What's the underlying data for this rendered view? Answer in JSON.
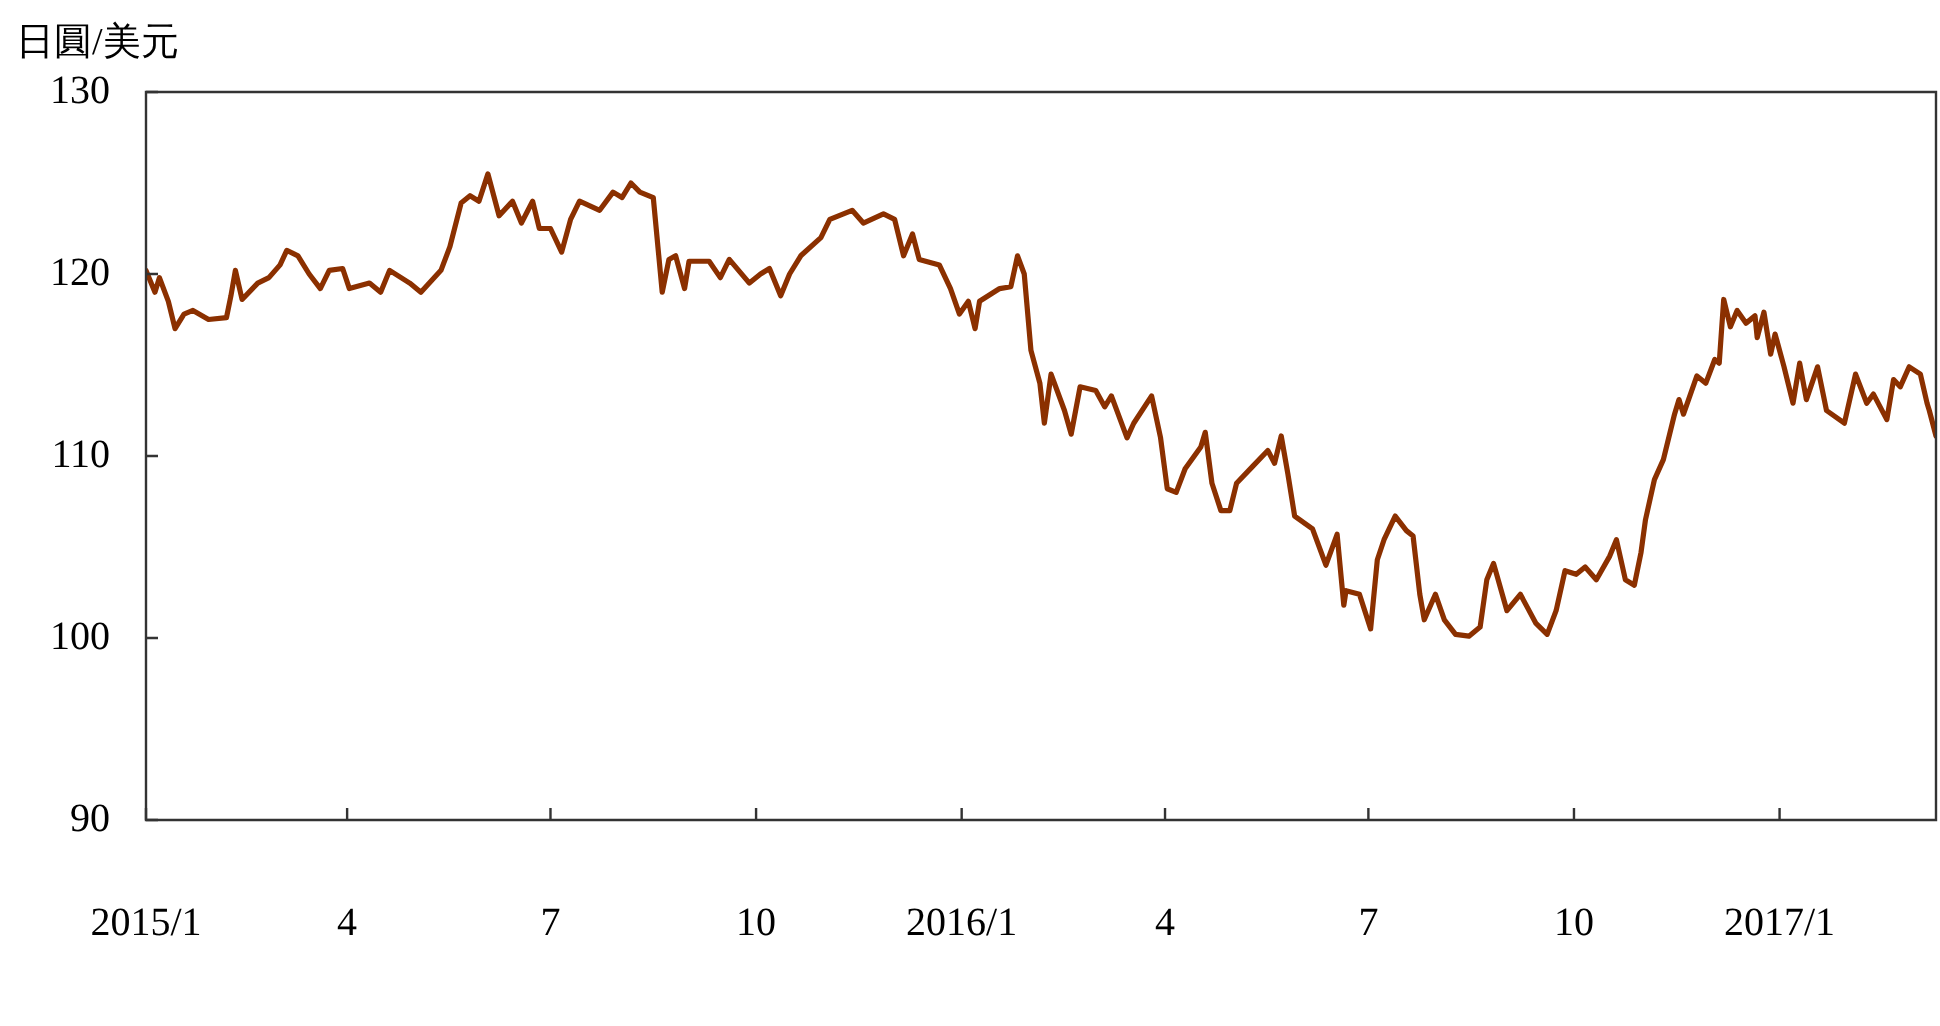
{
  "chart_data": {
    "type": "line",
    "ylabel": "日圓/美元",
    "x": [
      "2015-01-01",
      "2015-01-05",
      "2015-01-07",
      "2015-01-11",
      "2015-01-14",
      "2015-01-18",
      "2015-01-22",
      "2015-01-29",
      "2015-02-06",
      "2015-02-08",
      "2015-02-10",
      "2015-02-13",
      "2015-02-20",
      "2015-02-25",
      "2015-03-02",
      "2015-03-05",
      "2015-03-10",
      "2015-03-15",
      "2015-03-20",
      "2015-03-24",
      "2015-03-30",
      "2015-04-02",
      "2015-04-11",
      "2015-04-16",
      "2015-04-20",
      "2015-04-29",
      "2015-05-04",
      "2015-05-13",
      "2015-05-17",
      "2015-05-22",
      "2015-05-26",
      "2015-05-30",
      "2015-06-03",
      "2015-06-08",
      "2015-06-14",
      "2015-06-18",
      "2015-06-23",
      "2015-06-26",
      "2015-07-01",
      "2015-07-06",
      "2015-07-10",
      "2015-07-14",
      "2015-07-23",
      "2015-07-29",
      "2015-08-02",
      "2015-08-06",
      "2015-08-10",
      "2015-08-16",
      "2015-08-20",
      "2015-08-23",
      "2015-08-26",
      "2015-08-30",
      "2015-09-01",
      "2015-09-10",
      "2015-09-15",
      "2015-09-19",
      "2015-09-28",
      "2015-10-03",
      "2015-10-07",
      "2015-10-12",
      "2015-10-16",
      "2015-10-21",
      "2015-10-30",
      "2015-11-03",
      "2015-11-13",
      "2015-11-18",
      "2015-11-27",
      "2015-12-02",
      "2015-12-06",
      "2015-12-10",
      "2015-12-13",
      "2015-12-22",
      "2015-12-27",
      "2015-12-31",
      "2016-01-04",
      "2016-01-07",
      "2016-01-09",
      "2016-01-18",
      "2016-01-23",
      "2016-01-26",
      "2016-01-29",
      "2016-02-01",
      "2016-02-05",
      "2016-02-07",
      "2016-02-10",
      "2016-02-16",
      "2016-02-19",
      "2016-02-23",
      "2016-03-01",
      "2016-03-05",
      "2016-03-08",
      "2016-03-15",
      "2016-03-18",
      "2016-03-26",
      "2016-03-30",
      "2016-04-02",
      "2016-04-06",
      "2016-04-10",
      "2016-04-17",
      "2016-04-19",
      "2016-04-22",
      "2016-04-26",
      "2016-04-30",
      "2016-05-03",
      "2016-05-10",
      "2016-05-17",
      "2016-05-20",
      "2016-05-23",
      "2016-05-26",
      "2016-05-29",
      "2016-06-06",
      "2016-06-12",
      "2016-06-17",
      "2016-06-20",
      "2016-06-21",
      "2016-06-27",
      "2016-07-02",
      "2016-07-05",
      "2016-07-08",
      "2016-07-13",
      "2016-07-18",
      "2016-07-21",
      "2016-07-24",
      "2016-07-26",
      "2016-07-31",
      "2016-08-04",
      "2016-08-09",
      "2016-08-15",
      "2016-08-20",
      "2016-08-23",
      "2016-08-26",
      "2016-09-01",
      "2016-09-07",
      "2016-09-14",
      "2016-09-19",
      "2016-09-23",
      "2016-09-27",
      "2016-10-02",
      "2016-10-06",
      "2016-10-11",
      "2016-10-17",
      "2016-10-20",
      "2016-10-24",
      "2016-10-28",
      "2016-10-31",
      "2016-11-02",
      "2016-11-06",
      "2016-11-10",
      "2016-11-15",
      "2016-11-17",
      "2016-11-19",
      "2016-11-25",
      "2016-11-29",
      "2016-12-03",
      "2016-12-05",
      "2016-12-07",
      "2016-12-10",
      "2016-12-13",
      "2016-12-17",
      "2016-12-21",
      "2016-12-22",
      "2016-12-25",
      "2016-12-28",
      "2016-12-30",
      "2017-01-03",
      "2017-01-07",
      "2017-01-10",
      "2017-01-13",
      "2017-01-18",
      "2017-01-22",
      "2017-01-30",
      "2017-02-04",
      "2017-02-09",
      "2017-02-12",
      "2017-02-18",
      "2017-02-21",
      "2017-02-24",
      "2017-02-28",
      "2017-03-05",
      "2017-03-08",
      "2017-03-09",
      "2017-03-12"
    ],
    "series": [
      {
        "color": "#8b3000",
        "values": [
          120.2,
          119.0,
          119.8,
          118.5,
          117.0,
          117.8,
          118.0,
          117.5,
          117.6,
          118.8,
          120.2,
          118.6,
          119.5,
          119.8,
          120.5,
          121.3,
          121.0,
          120.0,
          119.2,
          120.2,
          120.3,
          119.2,
          119.5,
          119.0,
          120.2,
          119.5,
          119.0,
          120.2,
          121.5,
          123.9,
          124.3,
          124.0,
          125.5,
          123.2,
          124.0,
          122.8,
          124.0,
          122.5,
          122.5,
          121.2,
          123.0,
          124.0,
          123.5,
          124.5,
          124.2,
          125.0,
          124.5,
          124.2,
          119.0,
          120.8,
          121.0,
          119.2,
          120.7,
          120.7,
          119.8,
          120.8,
          119.5,
          120.0,
          120.3,
          118.8,
          120.0,
          121.0,
          122.0,
          123.0,
          123.5,
          122.8,
          123.3,
          123.0,
          121.0,
          122.2,
          120.8,
          120.5,
          119.2,
          117.8,
          118.5,
          117.0,
          118.5,
          119.2,
          119.3,
          121.0,
          120.0,
          115.8,
          114.0,
          111.8,
          114.5,
          112.5,
          111.2,
          113.8,
          113.6,
          112.7,
          113.3,
          111.0,
          111.8,
          113.3,
          111.0,
          108.2,
          108.0,
          109.3,
          110.5,
          111.3,
          108.5,
          107.0,
          107.0,
          108.5,
          109.4,
          110.3,
          109.6,
          111.1,
          109.0,
          106.7,
          106.0,
          104.0,
          105.7,
          101.8,
          102.6,
          102.4,
          100.5,
          104.3,
          105.4,
          106.7,
          105.9,
          105.6,
          102.4,
          101.0,
          102.4,
          101.0,
          100.2,
          100.1,
          100.6,
          103.2,
          104.1,
          101.5,
          102.4,
          100.8,
          100.2,
          101.5,
          103.7,
          103.5,
          103.9,
          103.2,
          104.5,
          105.4,
          103.2,
          102.9,
          104.7,
          106.5,
          108.7,
          109.8,
          112.3,
          113.1,
          112.3,
          114.4,
          114.0,
          115.3,
          115.1,
          118.6,
          117.1,
          118.0,
          117.3,
          117.7,
          116.5,
          117.9,
          115.6,
          116.7,
          114.9,
          112.9,
          115.1,
          113.1,
          114.9,
          112.5,
          111.8,
          114.5,
          112.9,
          113.4,
          112.0,
          114.2,
          113.8,
          114.9,
          114.5,
          112.9,
          112.5,
          111.1
        ]
      }
    ],
    "xlim": [
      "2015-01-01",
      "2017-03-12"
    ],
    "xticks": [
      {
        "value": "2015-01-01",
        "label": "2015/1"
      },
      {
        "value": "2015-04-01",
        "label": "4"
      },
      {
        "value": "2015-07-01",
        "label": "7"
      },
      {
        "value": "2015-10-01",
        "label": "10"
      },
      {
        "value": "2016-01-01",
        "label": "2016/1"
      },
      {
        "value": "2016-04-01",
        "label": "4"
      },
      {
        "value": "2016-07-01",
        "label": "7"
      },
      {
        "value": "2016-10-01",
        "label": "10"
      },
      {
        "value": "2017-01-01",
        "label": "2017/1"
      }
    ],
    "ylim": [
      90,
      130
    ],
    "yticks": [
      90,
      100,
      110,
      120,
      130
    ],
    "grid": false,
    "legend": false,
    "marker": "none",
    "line_style": "solid"
  }
}
